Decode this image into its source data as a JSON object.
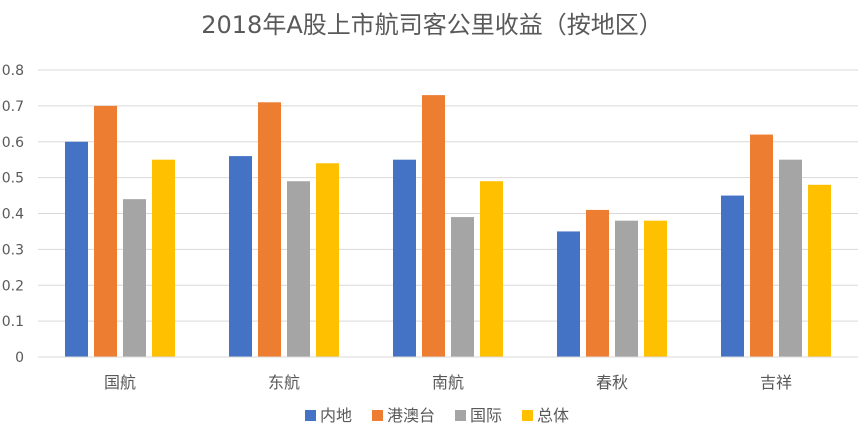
{
  "chart_data": {
    "type": "bar",
    "title": "2018年A股上市航司客公里收益（按地区）",
    "categories": [
      "国航",
      "东航",
      "南航",
      "春秋",
      "吉祥"
    ],
    "series": [
      {
        "name": "内地",
        "color": "#4472C4",
        "values": [
          0.6,
          0.56,
          0.55,
          0.35,
          0.45
        ]
      },
      {
        "name": "港澳台",
        "color": "#ED7D31",
        "values": [
          0.7,
          0.71,
          0.73,
          0.41,
          0.62
        ]
      },
      {
        "name": "国际",
        "color": "#A5A5A5",
        "values": [
          0.44,
          0.49,
          0.39,
          0.38,
          0.55
        ]
      },
      {
        "name": "总体",
        "color": "#FFC000",
        "values": [
          0.55,
          0.54,
          0.49,
          0.38,
          0.48
        ]
      }
    ],
    "ylim": [
      0,
      0.8
    ],
    "yticks": [
      "0",
      "0.1",
      "0.2",
      "0.3",
      "0.4",
      "0.5",
      "0.6",
      "0.7",
      "0.8"
    ],
    "grid": true,
    "legend": "bottom"
  }
}
